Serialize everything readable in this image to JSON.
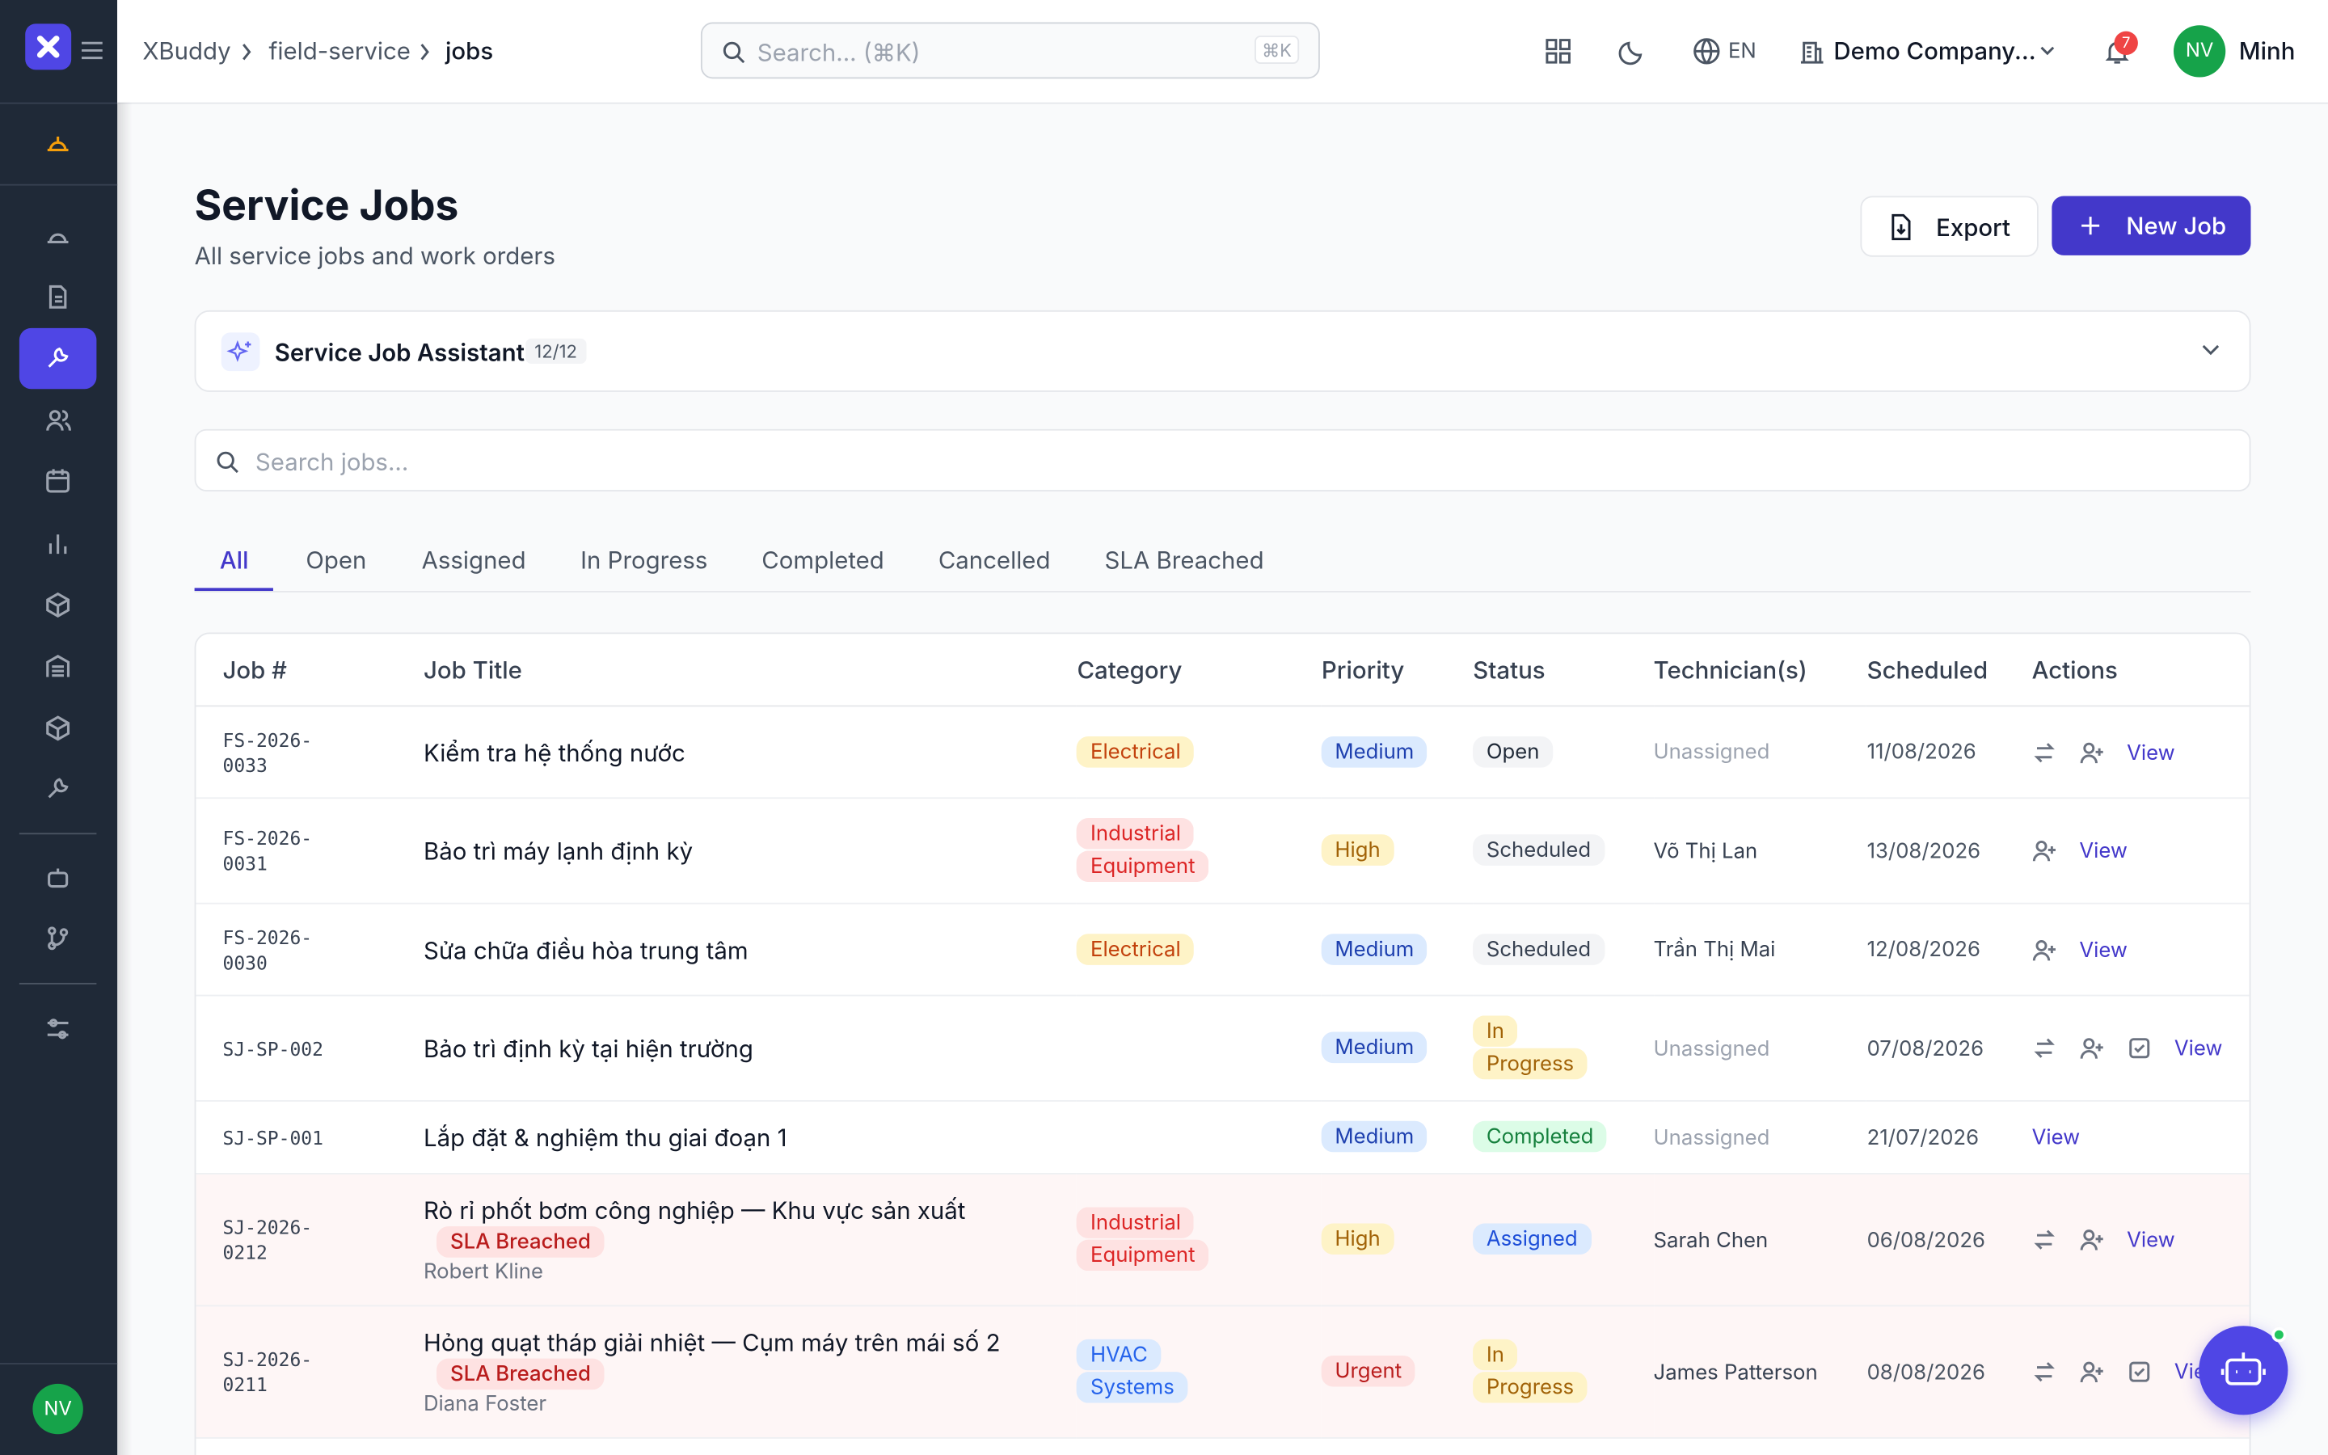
{
  "breadcrumb": [
    "XBuddy",
    "field-service",
    "jobs"
  ],
  "topbar": {
    "search_placeholder": "Search... (⌘K)",
    "shortcut": "⌘K",
    "language": "EN",
    "company": "Demo Company...",
    "notifications": "7",
    "user_initials": "NV",
    "user_name": "Minh"
  },
  "header": {
    "title": "Service Jobs",
    "subtitle": "All service jobs and work orders",
    "export": "Export",
    "new_job": "New Job"
  },
  "assistant": {
    "title": "Service Job Assistant",
    "count": "12/12"
  },
  "search_jobs": "Search jobs...",
  "tabs": [
    "All",
    "Open",
    "Assigned",
    "In Progress",
    "Completed",
    "Cancelled",
    "SLA Breached"
  ],
  "table": {
    "columns": [
      "Job #",
      "Job Title",
      "Category",
      "Priority",
      "Status",
      "Technician(s)",
      "Scheduled",
      "Actions"
    ],
    "rows": [
      {
        "id": "FS-2026-0033",
        "title": "Kiểm tra hệ thống nước",
        "category": "Electrical",
        "priority": "Medium",
        "status": "Open",
        "technician": "Unassigned",
        "scheduled": "11/08/2026",
        "action": "View"
      },
      {
        "id": "FS-2026-0031",
        "title": "Bảo trì máy lạnh định kỳ",
        "category": "Industrial Equipment",
        "priority": "High",
        "status": "Scheduled",
        "technician": "Võ Thị Lan",
        "scheduled": "13/08/2026",
        "action": "View"
      },
      {
        "id": "FS-2026-0030",
        "title": "Sửa chữa điều hòa trung tâm",
        "category": "Electrical",
        "priority": "Medium",
        "status": "Scheduled",
        "technician": "Trần Thị Mai",
        "scheduled": "12/08/2026",
        "action": "View"
      },
      {
        "id": "SJ-SP-002",
        "title": "Bảo trì định kỳ tại hiện trường",
        "priority": "Medium",
        "status": "In Progress",
        "technician": "Unassigned",
        "scheduled": "07/08/2026",
        "action": "View"
      },
      {
        "id": "SJ-SP-001",
        "title": "Lắp đặt & nghiệm thu giai đoạn 1",
        "priority": "Medium",
        "status": "Completed",
        "technician": "Unassigned",
        "scheduled": "21/07/2026",
        "action": "View"
      },
      {
        "id": "SJ-2026-0212",
        "title": "Rò rỉ phốt bơm công nghiệp — Khu vực sản xuất",
        "flag": "SLA Breached",
        "customer": "Robert Kline",
        "category": "Industrial Equipment",
        "priority": "High",
        "status": "Assigned",
        "technician": "Sarah Chen",
        "scheduled": "06/08/2026",
        "action": "View"
      },
      {
        "id": "SJ-2026-0211",
        "title": "Hỏng quạt tháp giải nhiệt — Cụm máy trên mái số 2",
        "flag": "SLA Breached",
        "customer": "Diana Foster",
        "category": "HVAC Systems",
        "priority": "Urgent",
        "status": "In Progress",
        "technician": "James Patterson",
        "scheduled": "08/08/2026",
        "action": "View"
      }
    ]
  },
  "sidebar_user": "NV",
  "badge_colors": {
    "Electrical": [
      "#fef3c7",
      "#c2410c"
    ],
    "Industrial Equipment": [
      "#fee2e2",
      "#dc2626"
    ],
    "HVAC Systems": [
      "#dbeafe",
      "#2563eb"
    ],
    "Medium": [
      "#dbeafe",
      "#1e40af"
    ],
    "High": [
      "#fef3c7",
      "#a16207"
    ],
    "Urgent": [
      "#fee2e2",
      "#b91c1c"
    ],
    "Open": [
      "#f3f4f6",
      "#1f2937"
    ],
    "Scheduled": [
      "#f3f4f6",
      "#374151"
    ],
    "In Progress": [
      "#fef3c7",
      "#a16207"
    ],
    "Completed": [
      "#dcfce7",
      "#15803d"
    ],
    "Assigned": [
      "#dbeafe",
      "#1d4ed8"
    ]
  }
}
